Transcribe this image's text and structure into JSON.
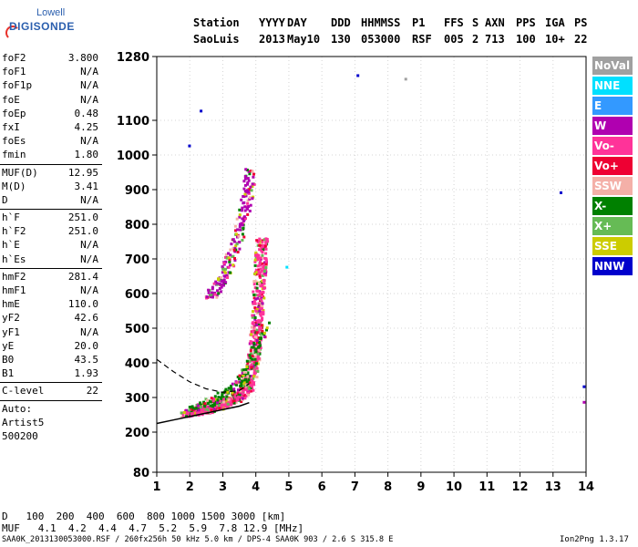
{
  "logo": {
    "line1": "Lowell",
    "line2": "DIGISONDE"
  },
  "header": {
    "labels": [
      "Station",
      "YYYY",
      "DAY",
      "DDD",
      "HHMMSS",
      "P1",
      "FFS",
      "S",
      "AXN",
      "PPS",
      "IGA",
      "PS"
    ],
    "values": [
      "SaoLuis",
      "2013",
      "May10",
      "130",
      "053000",
      "RSF",
      "005",
      "2",
      "713",
      "100",
      "10+",
      "22"
    ]
  },
  "params": [
    {
      "label": "foF2",
      "value": "3.800"
    },
    {
      "label": "foF1",
      "value": "N/A"
    },
    {
      "label": "foF1p",
      "value": "N/A"
    },
    {
      "label": "foE",
      "value": "N/A"
    },
    {
      "label": "foEp",
      "value": "0.48"
    },
    {
      "label": "fxI",
      "value": "4.25"
    },
    {
      "label": "foEs",
      "value": "N/A"
    },
    {
      "label": "fmin",
      "value": "1.80"
    },
    {
      "label": "MUF(D)",
      "value": "12.95"
    },
    {
      "label": "M(D)",
      "value": "3.41"
    },
    {
      "label": "D",
      "value": "N/A"
    },
    {
      "label": "h`F",
      "value": "251.0"
    },
    {
      "label": "h`F2",
      "value": "251.0"
    },
    {
      "label": "h`E",
      "value": "N/A"
    },
    {
      "label": "h`Es",
      "value": "N/A"
    },
    {
      "label": "hmF2",
      "value": "281.4"
    },
    {
      "label": "hmF1",
      "value": "N/A"
    },
    {
      "label": "hmE",
      "value": "110.0"
    },
    {
      "label": "yF2",
      "value": "42.6"
    },
    {
      "label": "yF1",
      "value": "N/A"
    },
    {
      "label": "yE",
      "value": "20.0"
    },
    {
      "label": "B0",
      "value": "43.5"
    },
    {
      "label": "B1",
      "value": "1.93"
    },
    {
      "label": "C-level",
      "value": "22"
    }
  ],
  "auto": {
    "line1": "Auto:",
    "line2": "Artist5",
    "line3": "500200"
  },
  "legend": [
    {
      "label": "NoVal",
      "color": "#a0a0a0",
      "text_color": "#ffffff"
    },
    {
      "label": "NNE",
      "color": "#00e0ff",
      "text_color": "#ffffff"
    },
    {
      "label": "E",
      "color": "#3399ff",
      "text_color": "#ffffff"
    },
    {
      "label": "W",
      "color": "#b000b0",
      "text_color": "#ffffff"
    },
    {
      "label": "Vo-",
      "color": "#ff3399",
      "text_color": "#ffffff"
    },
    {
      "label": "Vo+",
      "color": "#ee0033",
      "text_color": "#ffffff"
    },
    {
      "label": "SSW",
      "color": "#f4b0a8",
      "text_color": "#ffffff"
    },
    {
      "label": "X-",
      "color": "#008000",
      "text_color": "#ffffff"
    },
    {
      "label": "X+",
      "color": "#66bb55",
      "text_color": "#ffffff"
    },
    {
      "label": "SSE",
      "color": "#cccc00",
      "text_color": "#ffffff"
    },
    {
      "label": "NNW",
      "color": "#0000cc",
      "text_color": "#ffffff"
    }
  ],
  "bottom": {
    "row1_label": "D",
    "row1_values": "100  200  400  600  800 1000 1500 3000 [km]",
    "row2_label": "MUF",
    "row2_values": "4.1  4.2  4.4  4.7  5.2  5.9  7.8 12.9 [MHz]",
    "footer_left": "SAA0K_2013130053000.RSF / 260fx256h 50 kHz 5.0 km / DPS-4 SAA0K 903 / 2.6 S 315.8 E",
    "footer_right": "Ion2Png 1.3.17"
  },
  "chart_data": {
    "type": "scatter",
    "x_ticks": [
      "1",
      "2",
      "3",
      "4",
      "5",
      "6",
      "7",
      "8",
      "9",
      "10",
      "11",
      "12",
      "13",
      "14"
    ],
    "y_ticks": [
      "80",
      "200",
      "300",
      "400",
      "500",
      "600",
      "700",
      "800",
      "900",
      "1000",
      "1100",
      "1280"
    ],
    "xlim": [
      1,
      14
    ],
    "ylim": [
      80,
      1280
    ],
    "y_scale": "piecewise",
    "grid": true,
    "traces": [
      {
        "name": "Vo-",
        "points": [
          [
            1.85,
            255
          ],
          [
            2.2,
            262
          ],
          [
            2.6,
            272
          ],
          [
            3.0,
            285
          ],
          [
            3.4,
            300
          ],
          [
            3.7,
            330
          ],
          [
            3.85,
            380
          ],
          [
            3.95,
            450
          ],
          [
            4.0,
            520
          ],
          [
            4.05,
            600
          ],
          [
            4.1,
            680
          ],
          [
            4.15,
            760
          ]
        ]
      },
      {
        "name": "W",
        "points": [
          [
            2.6,
            590
          ],
          [
            2.9,
            640
          ],
          [
            3.2,
            700
          ],
          [
            3.5,
            790
          ],
          [
            3.7,
            880
          ],
          [
            3.8,
            960
          ]
        ]
      },
      {
        "name": "X-",
        "points": [
          [
            2.0,
            270
          ],
          [
            2.5,
            285
          ],
          [
            3.0,
            310
          ],
          [
            3.5,
            350
          ],
          [
            3.9,
            420
          ],
          [
            4.2,
            520
          ]
        ]
      }
    ],
    "profile_solid": [
      [
        1,
        225
      ],
      [
        1.5,
        235
      ],
      [
        2,
        245
      ],
      [
        2.5,
        255
      ],
      [
        3,
        265
      ],
      [
        3.5,
        275
      ],
      [
        3.8,
        285
      ]
    ],
    "profile_dashed": [
      [
        1,
        410
      ],
      [
        1.5,
        375
      ],
      [
        2,
        345
      ],
      [
        2.5,
        325
      ],
      [
        3,
        315
      ],
      [
        3.5,
        320
      ],
      [
        3.8,
        340
      ]
    ],
    "isolated_points": [
      {
        "x": 1.95,
        "y": 1030,
        "mode": "NNW"
      },
      {
        "x": 2.3,
        "y": 1130,
        "mode": "NNW"
      },
      {
        "x": 7.05,
        "y": 1230,
        "mode": "NNW"
      },
      {
        "x": 8.5,
        "y": 1220,
        "mode": "NoVal"
      },
      {
        "x": 13.2,
        "y": 895,
        "mode": "NNW"
      },
      {
        "x": 4.9,
        "y": 680,
        "mode": "NNE"
      },
      {
        "x": 13.9,
        "y": 290,
        "mode": "W"
      },
      {
        "x": 13.9,
        "y": 335,
        "mode": "NNW"
      }
    ]
  }
}
